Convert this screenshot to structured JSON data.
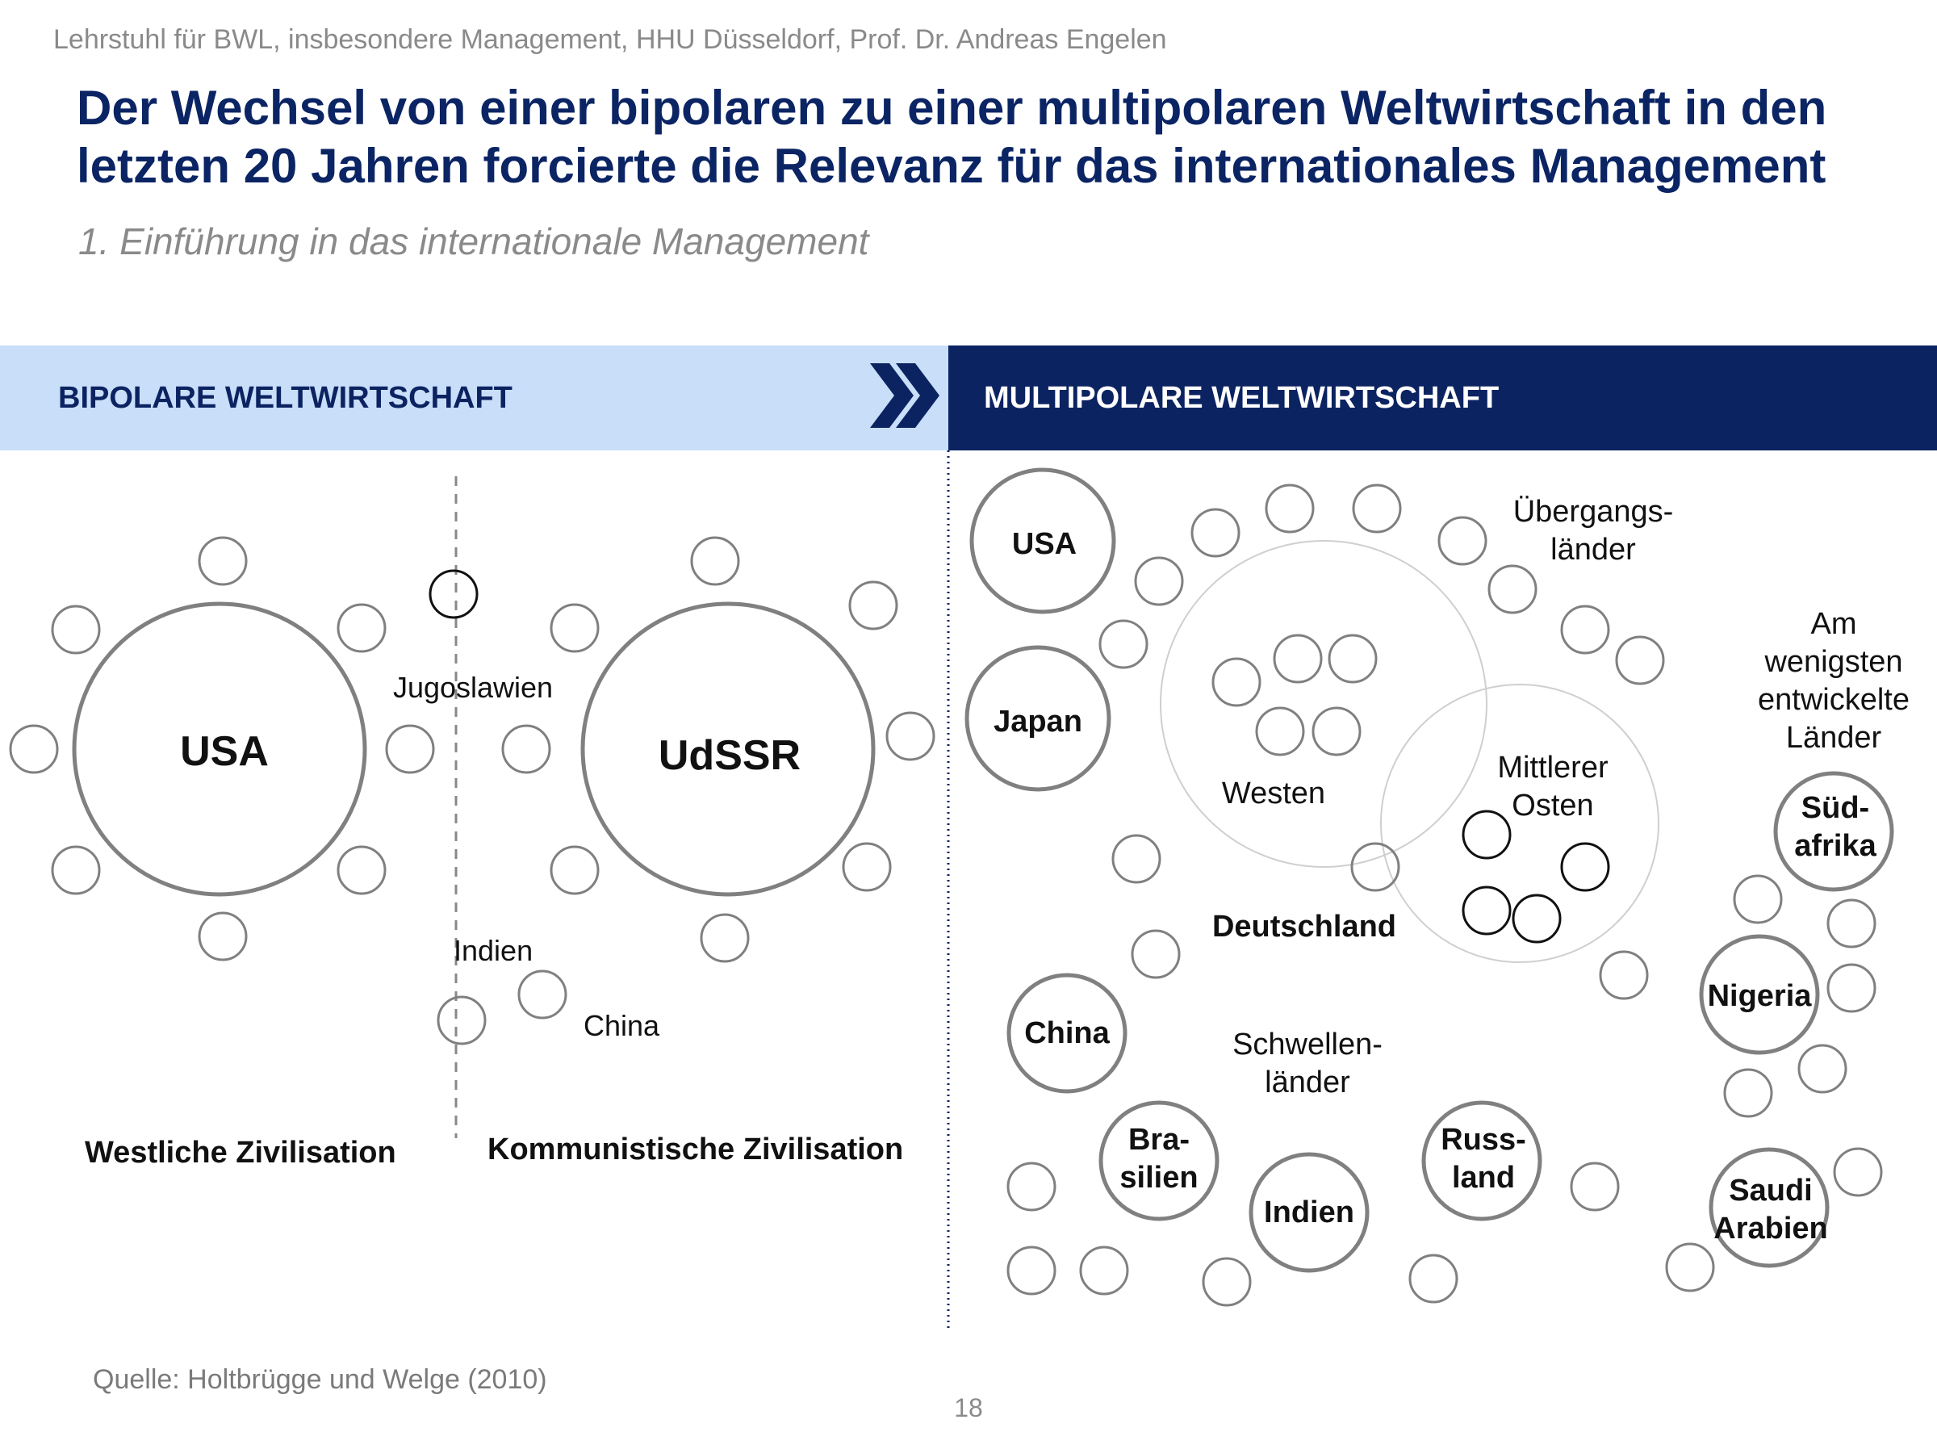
{
  "header": {
    "affiliation": "Lehrstuhl für BWL, insbesondere Management, HHU Düsseldorf, Prof. Dr. Andreas Engelen",
    "title": "Der Wechsel von einer bipolaren zu einer multipolaren Weltwirtschaft in den letzten 20 Jahren forcierte die Relevanz für das internationales Management",
    "subtitle": "1. Einführung in das internationale Management"
  },
  "bands": {
    "left_label": "BIPOLARE WELTWIRTSCHAFT",
    "right_label": "MULTIPOLARE WELTWIRTSCHAFT"
  },
  "bipolar": {
    "usa": "USA",
    "udssr": "UdSSR",
    "jugoslawien": "Jugoslawien",
    "indien": "Indien",
    "china": "China",
    "west_caption": "Westliche Zivilisation",
    "east_caption": "Kommunistische Zivilisation"
  },
  "multipolar": {
    "usa": "USA",
    "japan": "Japan",
    "china": "China",
    "brasilien": [
      "Bra-",
      "silien"
    ],
    "indien": "Indien",
    "russland": [
      "Russ-",
      "land"
    ],
    "suedafrika": [
      "Süd-",
      "afrika"
    ],
    "nigeria": "Nigeria",
    "saudi": [
      "Saudi",
      "Arabien"
    ],
    "deutschland": "Deutschland",
    "westen": "Westen",
    "mittlerer_osten": [
      "Mittlerer",
      "Osten"
    ],
    "uebergang": [
      "Übergangs-",
      "länder"
    ],
    "schwellen": [
      "Schwellen-",
      "länder"
    ],
    "am_wenigsten": [
      "Am",
      "wenigsten",
      "entwickelte",
      "Länder"
    ]
  },
  "footer": {
    "source": "Quelle: Holtbrügge und Welge (2010)",
    "page": "18"
  },
  "colors": {
    "navy": "#0c2361",
    "light_blue": "#c9def8",
    "circle_gray": "#808080",
    "text_gray": "#8a8a8a"
  }
}
